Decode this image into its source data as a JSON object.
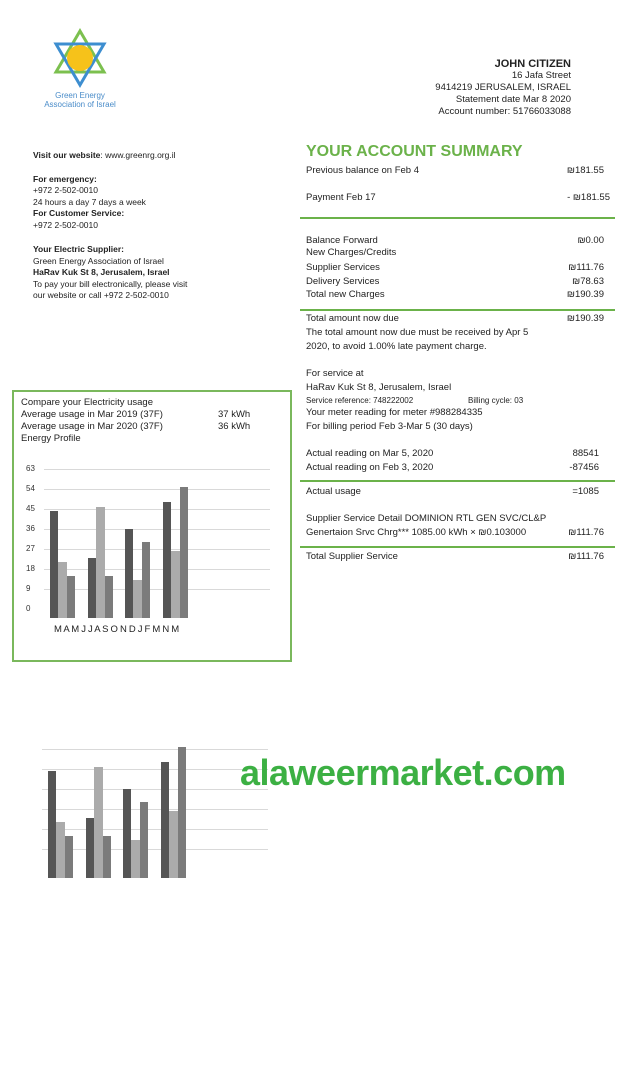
{
  "logo": {
    "text_line1": "Green Energy",
    "text_line2": "Association of Israel"
  },
  "customer": {
    "name": "JOHN CITIZEN",
    "street": "16 Jafa Street",
    "city": "9414219 JERUSALEM, ISRAEL",
    "statement_date": "Statement date Mar 8 2020",
    "account_number": "Account number: 51766033088"
  },
  "left": {
    "website_label": "Visit our website",
    "website_value": ": www.greenrg.org.il",
    "emergency_label": "For emergency:",
    "emergency_phone": "+972 2-502-0010",
    "emergency_hours": "24 hours a day 7 days a week",
    "customer_service_label": "For Customer Service:",
    "customer_service_phone": "+972 2-502-0010",
    "supplier_label": "Your Electric Supplier:",
    "supplier_name": "Green Energy Association of Israel",
    "supplier_address": "HaRav Kuk St 8, Jerusalem, Israel",
    "pay_line1": "To pay your bill electronically, please visit",
    "pay_line2": "our website or call +972 2-502-0010"
  },
  "summary": {
    "title": "YOUR ACCOUNT SUMMARY",
    "previous_balance": {
      "label": "Previous balance on Feb 4",
      "value": "₪181.55"
    },
    "payment": {
      "label": "Payment Feb 17",
      "value": "- ₪181.55"
    },
    "balance_forward": {
      "label": "Balance Forward",
      "value": "₪0.00"
    },
    "new_charges_label": "New Charges/Credits",
    "supplier_services": {
      "label": "Supplier Services",
      "value": "₪111.76"
    },
    "delivery_services": {
      "label": "Delivery Services",
      "value": "₪78.63"
    },
    "total_new": {
      "label": "Total new Charges",
      "value": "₪190.39"
    },
    "total_due": {
      "label": "Total amount now due",
      "value": "₪190.39"
    },
    "due_note1": "The total amount now due must be received by Apr 5",
    "due_note2": "2020, to avoid 1.00% late payment charge.",
    "service_at": "For service at",
    "service_address": "HaRav Kuk St 8, Jerusalem, Israel",
    "service_reference": "Service reference: 748222002",
    "billing_cycle": "Billing cycle:  03",
    "meter_line": "Your meter reading for meter #988284335",
    "billing_period": "For billing period Feb 3-Mar 5 (30 days)",
    "reading_mar": {
      "label": "Actual reading on Mar 5, 2020",
      "value": "88541"
    },
    "reading_feb": {
      "label": "Actual reading on Feb 3, 2020",
      "value": "-87456"
    },
    "actual_usage": {
      "label": "Actual usage",
      "value": "=1085"
    },
    "supplier_detail": "Supplier Service Detail DOMINION RTL GEN SVC/CL&P",
    "generation": {
      "label": "Genertaion Srvc Chrg*** 1085.00 kWh × ₪0.103000",
      "value": "₪111.76"
    },
    "total_supplier": {
      "label": "Total Supplier Service",
      "value": "₪111.76"
    }
  },
  "usage_box": {
    "title": "Compare your Electricity usage",
    "avg2019": {
      "label": "Average usage in Mar 2019 (37F)",
      "value": "37 kWh"
    },
    "avg2020": {
      "label": "Average usage in Mar 2020 (37F)",
      "value": "36 kWh"
    },
    "profile_label": "Energy Profile"
  },
  "chart_data": {
    "type": "bar",
    "title": "Energy Profile",
    "x_tick_labels": "M A M J J A S O N D J F M N M",
    "y_ticks": [
      0,
      9,
      18,
      27,
      36,
      45,
      54,
      63
    ],
    "ylim": [
      0,
      63
    ],
    "grid": true,
    "series": [
      {
        "values": [
          48,
          27,
          40,
          52
        ],
        "color": "#555555"
      },
      {
        "values": [
          25,
          50,
          17,
          30
        ],
        "color": "#ababab"
      },
      {
        "values": [
          19,
          19,
          34,
          59
        ],
        "color": "#7b7b7b"
      }
    ]
  },
  "watermark": "alaweermarket.com",
  "colors": {
    "accent": "#6bb24a",
    "watermark": "#3cb043"
  }
}
